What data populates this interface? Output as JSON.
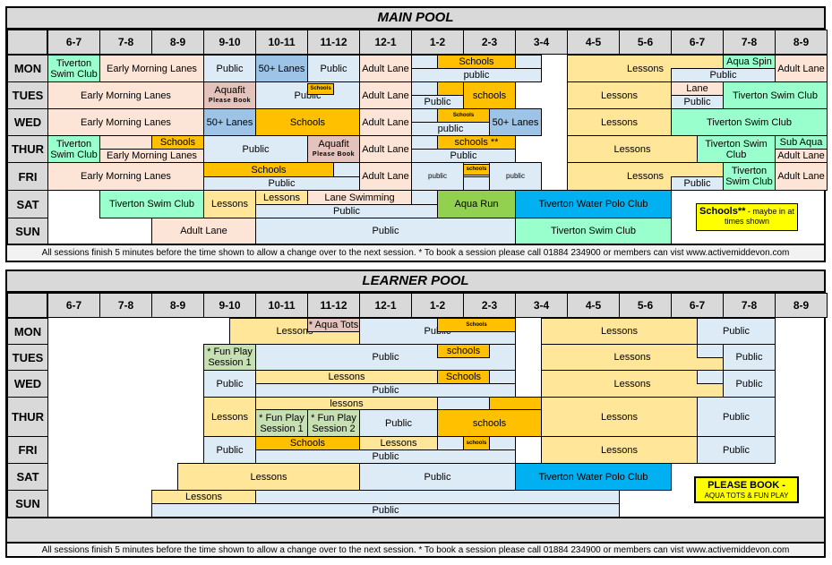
{
  "colors": {
    "header_gray": "#d9d9d9",
    "early_lanes": "#fce4d6",
    "public": "#ddebf7",
    "lanes_50": "#9dc3e6",
    "swim_club": "#99ffcc",
    "schools": "#ffc000",
    "lessons": "#ffe699",
    "aquafit": "#e3c3bb",
    "aqua_run": "#92d050",
    "water_polo": "#00b0f0",
    "fun_play": "#c6e0b4",
    "legend": "#ffff00"
  },
  "time_slots": [
    "6-7",
    "7-8",
    "8-9",
    "9-10",
    "10-11",
    "11-12",
    "12-1",
    "1-2",
    "2-3",
    "3-4",
    "4-5",
    "5-6",
    "6-7",
    "7-8",
    "8-9"
  ],
  "days": [
    "MON",
    "TUES",
    "WED",
    "THUR",
    "FRI",
    "SAT",
    "SUN"
  ],
  "footer": "All sessions finish 5 minutes before the time shown to allow a change over to the next session. * To book a session please call 01884 234900 or members can vist www.activemiddevon.com",
  "main_pool": {
    "title": "MAIN POOL",
    "legend": {
      "bold": "Schools**",
      "text": " - maybe in at times shown"
    },
    "sessions": [
      {
        "day": "MON",
        "start": 6,
        "end": 7,
        "label": "Tiverton\nSwim Club",
        "color": "swim_club"
      },
      {
        "day": "MON",
        "start": 7,
        "end": 9,
        "label": "Early Morning Lanes",
        "color": "early_lanes"
      },
      {
        "day": "MON",
        "start": 9,
        "end": 10,
        "label": "Public",
        "color": "public"
      },
      {
        "day": "MON",
        "start": 10,
        "end": 11,
        "label": "50+ Lanes",
        "color": "lanes_50"
      },
      {
        "day": "MON",
        "start": 11,
        "end": 12,
        "label": "Public",
        "color": "public"
      },
      {
        "day": "MON",
        "start": 12,
        "end": 13,
        "label": "Adult Lane",
        "color": "early_lanes"
      },
      {
        "day": "MON",
        "start": 13,
        "end": 15.5,
        "part": "bottom",
        "label": "public",
        "color": "public"
      },
      {
        "day": "MON",
        "start": 13,
        "end": 13.5,
        "part": "top",
        "label": "",
        "color": "public"
      },
      {
        "day": "MON",
        "start": 15,
        "end": 15.5,
        "part": "top",
        "label": "",
        "color": "public"
      },
      {
        "day": "MON",
        "start": 13.5,
        "end": 15,
        "part": "top",
        "label": "Schools",
        "color": "schools"
      },
      {
        "day": "MON",
        "start": 16,
        "end": 19,
        "label": "Lessons",
        "color": "lessons"
      },
      {
        "day": "MON",
        "start": 18,
        "end": 20,
        "part": "bottom",
        "label": "Public",
        "color": "public"
      },
      {
        "day": "MON",
        "start": 19,
        "end": 20,
        "part": "top",
        "label": "Aqua Spin",
        "color": "swim_club"
      },
      {
        "day": "MON",
        "start": 20,
        "end": 21,
        "label": "Adult Lane",
        "color": "early_lanes"
      },
      {
        "day": "TUES",
        "start": 6,
        "end": 9,
        "label": "Early Morning Lanes",
        "color": "early_lanes"
      },
      {
        "day": "TUES",
        "start": 9,
        "end": 10,
        "label": "Aquafit",
        "sub": "Please Book",
        "color": "aquafit"
      },
      {
        "day": "TUES",
        "start": 10,
        "end": 12,
        "label": "Public",
        "color": "public"
      },
      {
        "day": "TUES",
        "start": 11,
        "end": 11.5,
        "part": "tiny",
        "label": "Schools",
        "color": "schools"
      },
      {
        "day": "TUES",
        "start": 12,
        "end": 13,
        "label": "Adult Lane",
        "color": "early_lanes"
      },
      {
        "day": "TUES",
        "start": 13,
        "end": 14,
        "part": "bottom",
        "label": "Public",
        "color": "public"
      },
      {
        "day": "TUES",
        "start": 13,
        "end": 13.5,
        "part": "top",
        "label": "",
        "color": "public"
      },
      {
        "day": "TUES",
        "start": 13.5,
        "end": 15,
        "part": "top",
        "label": "",
        "color": "schools"
      },
      {
        "day": "TUES",
        "start": 14,
        "end": 15,
        "label": "schools",
        "color": "schools"
      },
      {
        "day": "TUES",
        "start": 16,
        "end": 18,
        "label": "Lessons",
        "color": "lessons"
      },
      {
        "day": "TUES",
        "start": 18,
        "end": 19,
        "part": "top",
        "label": "Lane",
        "color": "early_lanes"
      },
      {
        "day": "TUES",
        "start": 18,
        "end": 19,
        "part": "bottom",
        "label": "Public",
        "color": "public"
      },
      {
        "day": "TUES",
        "start": 19,
        "end": 21,
        "label": "Tiverton Swim Club",
        "color": "swim_club"
      },
      {
        "day": "WED",
        "start": 6,
        "end": 9,
        "label": "Early Morning Lanes",
        "color": "early_lanes"
      },
      {
        "day": "WED",
        "start": 9,
        "end": 10,
        "label": "50+ Lanes",
        "color": "lanes_50"
      },
      {
        "day": "WED",
        "start": 10,
        "end": 12,
        "label": "Schools",
        "color": "schools"
      },
      {
        "day": "WED",
        "start": 12,
        "end": 13,
        "label": "Adult Lane",
        "color": "early_lanes"
      },
      {
        "day": "WED",
        "start": 13,
        "end": 14.5,
        "part": "bottom",
        "label": "public",
        "color": "public"
      },
      {
        "day": "WED",
        "start": 13,
        "end": 13.5,
        "part": "top",
        "label": "",
        "color": "public"
      },
      {
        "day": "WED",
        "start": 13.5,
        "end": 14.5,
        "part": "top",
        "label": "Schools",
        "small": true,
        "color": "schools"
      },
      {
        "day": "WED",
        "start": 14.5,
        "end": 15.5,
        "label": "50+  Lanes",
        "color": "lanes_50"
      },
      {
        "day": "WED",
        "start": 16,
        "end": 18,
        "label": "Lessons",
        "color": "lessons"
      },
      {
        "day": "WED",
        "start": 18,
        "end": 21,
        "label": "Tiverton Swim Club",
        "color": "swim_club"
      },
      {
        "day": "THUR",
        "start": 6,
        "end": 7,
        "label": "Tiverton\nSwim Club",
        "color": "swim_club"
      },
      {
        "day": "THUR",
        "start": 7,
        "end": 9,
        "part": "bottom",
        "label": "Early Morning Lanes",
        "color": "early_lanes"
      },
      {
        "day": "THUR",
        "start": 7,
        "end": 8,
        "part": "top",
        "label": "",
        "color": "early_lanes"
      },
      {
        "day": "THUR",
        "start": 8,
        "end": 9,
        "part": "top",
        "label": "Schools",
        "color": "schools"
      },
      {
        "day": "THUR",
        "start": 9,
        "end": 11,
        "label": "Public",
        "color": "public"
      },
      {
        "day": "THUR",
        "start": 11,
        "end": 12,
        "label": "Aquafit",
        "sub": "Please Book",
        "color": "aquafit"
      },
      {
        "day": "THUR",
        "start": 12,
        "end": 13,
        "label": "Adult Lane",
        "color": "early_lanes"
      },
      {
        "day": "THUR",
        "start": 13,
        "end": 15,
        "part": "bottom",
        "label": "Public",
        "color": "public"
      },
      {
        "day": "THUR",
        "start": 13,
        "end": 13.5,
        "part": "top",
        "label": "",
        "color": "public"
      },
      {
        "day": "THUR",
        "start": 13.5,
        "end": 15,
        "part": "top",
        "label": "schools **",
        "color": "schools"
      },
      {
        "day": "THUR",
        "start": 16,
        "end": 18.5,
        "label": "Lessons",
        "color": "lessons"
      },
      {
        "day": "THUR",
        "start": 18.5,
        "end": 20,
        "label": "Tiverton Swim\nClub",
        "color": "swim_club"
      },
      {
        "day": "THUR",
        "start": 20,
        "end": 21,
        "part": "top",
        "label": "Sub Aqua",
        "color": "swim_club"
      },
      {
        "day": "THUR",
        "start": 20,
        "end": 21,
        "part": "bottom",
        "label": "Adult Lane",
        "color": "early_lanes"
      },
      {
        "day": "FRI",
        "start": 6,
        "end": 9,
        "label": "Early Morning Lanes",
        "color": "early_lanes"
      },
      {
        "day": "FRI",
        "start": 9,
        "end": 12,
        "part": "bottom",
        "label": "Public",
        "color": "public"
      },
      {
        "day": "FRI",
        "start": 11.5,
        "end": 12,
        "part": "top",
        "label": "",
        "color": "public"
      },
      {
        "day": "FRI",
        "start": 9,
        "end": 11.5,
        "part": "top",
        "label": "Schools",
        "color": "schools"
      },
      {
        "day": "FRI",
        "start": 12,
        "end": 13,
        "label": "Adult Lane",
        "color": "early_lanes"
      },
      {
        "day": "FRI",
        "start": 13,
        "end": 14,
        "label": "public",
        "small2": true,
        "color": "public"
      },
      {
        "day": "FRI",
        "start": 14,
        "end": 14.5,
        "part": "bottom",
        "label": "",
        "color": "public"
      },
      {
        "day": "FRI",
        "start": 14,
        "end": 14.5,
        "part": "tiny",
        "label": "schools",
        "color": "schools"
      },
      {
        "day": "FRI",
        "start": 14.5,
        "end": 15.5,
        "label": "public",
        "small2": true,
        "color": "public"
      },
      {
        "day": "FRI",
        "start": 16,
        "end": 19,
        "label": "Lessons",
        "color": "lessons"
      },
      {
        "day": "FRI",
        "start": 18,
        "end": 19,
        "part": "bottom",
        "label": "Public",
        "color": "public"
      },
      {
        "day": "FRI",
        "start": 19,
        "end": 20,
        "label": "Tiverton\nSwim Club",
        "color": "swim_club"
      },
      {
        "day": "FRI",
        "start": 20,
        "end": 21,
        "label": "Adult Lane",
        "color": "early_lanes"
      },
      {
        "day": "SAT",
        "start": 7,
        "end": 9,
        "label": "Tiverton Swim Club",
        "color": "swim_club"
      },
      {
        "day": "SAT",
        "start": 9,
        "end": 10,
        "label": "Lessons",
        "color": "lessons"
      },
      {
        "day": "SAT",
        "start": 10,
        "end": 13.5,
        "part": "bottom",
        "label": "Public",
        "color": "public"
      },
      {
        "day": "SAT",
        "start": 13,
        "end": 13.5,
        "part": "top",
        "label": "",
        "color": "public"
      },
      {
        "day": "SAT",
        "start": 10,
        "end": 11,
        "part": "top",
        "label": "Lessons",
        "color": "lessons"
      },
      {
        "day": "SAT",
        "start": 11,
        "end": 13,
        "part": "top",
        "label": "Lane Swimming",
        "color": "early_lanes"
      },
      {
        "day": "SAT",
        "start": 13.5,
        "end": 15,
        "label": "Aqua Run",
        "color": "aqua_run"
      },
      {
        "day": "SAT",
        "start": 15,
        "end": 18,
        "label": "Tiverton Water Polo Club",
        "color": "water_polo"
      },
      {
        "day": "SUN",
        "start": 8,
        "end": 10,
        "label": "Adult Lane",
        "color": "early_lanes"
      },
      {
        "day": "SUN",
        "start": 10,
        "end": 15,
        "label": "Public",
        "color": "public"
      },
      {
        "day": "SUN",
        "start": 15,
        "end": 18,
        "label": "Tiverton Swim Club",
        "color": "swim_club"
      }
    ]
  },
  "learner_pool": {
    "title": "LEARNER POOL",
    "legend": {
      "bold": "PLEASE BOOK -",
      "text": "AQUA TOTS & FUN PLAY"
    },
    "sessions": [
      {
        "day": "MON",
        "start": 9.5,
        "end": 12,
        "label": "Lessons",
        "color": "lessons"
      },
      {
        "day": "MON",
        "start": 11,
        "end": 12,
        "part": "top",
        "label": "* Aqua Tots",
        "color": "aquafit"
      },
      {
        "day": "MON",
        "start": 12,
        "end": 15,
        "label": "Public",
        "color": "public"
      },
      {
        "day": "MON",
        "start": 13.5,
        "end": 15,
        "part": "top",
        "label": "Schools",
        "small": true,
        "color": "schools"
      },
      {
        "day": "MON",
        "start": 15.5,
        "end": 18.5,
        "label": "Lessons",
        "color": "lessons"
      },
      {
        "day": "MON",
        "start": 18.5,
        "end": 20,
        "label": "Public",
        "color": "public"
      },
      {
        "day": "TUES",
        "start": 9,
        "end": 10,
        "label": "* Fun Play\nSession 1",
        "color": "fun_play"
      },
      {
        "day": "TUES",
        "start": 10,
        "end": 15,
        "label": "Public",
        "color": "public"
      },
      {
        "day": "TUES",
        "start": 13.5,
        "end": 14.5,
        "part": "top",
        "label": "schools",
        "color": "schools"
      },
      {
        "day": "TUES",
        "start": 15.5,
        "end": 19,
        "label": "Lessons",
        "color": "lessons"
      },
      {
        "day": "TUES",
        "start": 18.5,
        "end": 19,
        "part": "top",
        "label": "",
        "color": "public"
      },
      {
        "day": "TUES",
        "start": 19,
        "end": 20,
        "label": "Public",
        "color": "public"
      },
      {
        "day": "WED",
        "start": 9,
        "end": 10,
        "label": "Public",
        "color": "public"
      },
      {
        "day": "WED",
        "start": 10,
        "end": 15,
        "part": "bottom",
        "label": "Public",
        "color": "public"
      },
      {
        "day": "WED",
        "start": 10,
        "end": 13.5,
        "part": "top",
        "label": "Lessons",
        "color": "lessons"
      },
      {
        "day": "WED",
        "start": 13.5,
        "end": 14.5,
        "part": "top",
        "label": "Schools",
        "color": "schools"
      },
      {
        "day": "WED",
        "start": 14.5,
        "end": 15,
        "part": "top",
        "label": "",
        "color": "public"
      },
      {
        "day": "WED",
        "start": 15.5,
        "end": 19,
        "label": "Lessons",
        "color": "lessons"
      },
      {
        "day": "WED",
        "start": 18.5,
        "end": 19,
        "part": "top",
        "label": "",
        "color": "public"
      },
      {
        "day": "WED",
        "start": 19,
        "end": 20,
        "label": "Public",
        "color": "public"
      },
      {
        "day": "THUR",
        "start": 9,
        "end": 10,
        "label": "Lessons",
        "color": "lessons"
      },
      {
        "day": "THUR",
        "start": 10,
        "end": 13.5,
        "part": "top",
        "label": "lessons",
        "color": "lessons"
      },
      {
        "day": "THUR",
        "start": 10,
        "end": 11,
        "part": "bottom",
        "label": "* Fun Play\nSession 1",
        "color": "fun_play"
      },
      {
        "day": "THUR",
        "start": 11,
        "end": 12,
        "part": "bottom",
        "label": "* Fun Play\nSession 2",
        "color": "fun_play"
      },
      {
        "day": "THUR",
        "start": 12,
        "end": 13.5,
        "part": "bottom",
        "label": "Public",
        "color": "public"
      },
      {
        "day": "THUR",
        "start": 13.5,
        "end": 14.5,
        "part": "top",
        "label": "",
        "color": "public"
      },
      {
        "day": "THUR",
        "start": 14.5,
        "end": 15.5,
        "part": "top",
        "label": "",
        "color": "schools"
      },
      {
        "day": "THUR",
        "start": 13.5,
        "end": 15.5,
        "part": "bottom",
        "label": "schools",
        "color": "schools"
      },
      {
        "day": "THUR",
        "start": 15.5,
        "end": 18.5,
        "label": "Lessons",
        "color": "lessons"
      },
      {
        "day": "THUR",
        "start": 18.5,
        "end": 20,
        "label": "Public",
        "color": "public"
      },
      {
        "day": "FRI",
        "start": 9,
        "end": 10,
        "label": "Public",
        "color": "public"
      },
      {
        "day": "FRI",
        "start": 10,
        "end": 15,
        "part": "bottom",
        "label": "Public",
        "color": "public"
      },
      {
        "day": "FRI",
        "start": 10,
        "end": 12,
        "part": "top",
        "label": "Schools",
        "color": "schools"
      },
      {
        "day": "FRI",
        "start": 12,
        "end": 13.5,
        "part": "top",
        "label": "Lessons",
        "color": "lessons"
      },
      {
        "day": "FRI",
        "start": 13.5,
        "end": 15,
        "part": "top",
        "label": "",
        "color": "public"
      },
      {
        "day": "FRI",
        "start": 14,
        "end": 14.5,
        "part": "top",
        "label": "schools",
        "small": true,
        "color": "schools"
      },
      {
        "day": "FRI",
        "start": 15.5,
        "end": 18.5,
        "label": "Lessons",
        "color": "lessons"
      },
      {
        "day": "FRI",
        "start": 18.5,
        "end": 20,
        "label": "Public",
        "color": "public"
      },
      {
        "day": "SAT",
        "start": 8.5,
        "end": 12,
        "label": "Lessons",
        "color": "lessons"
      },
      {
        "day": "SAT",
        "start": 12,
        "end": 15,
        "label": "Public",
        "color": "public"
      },
      {
        "day": "SAT",
        "start": 15,
        "end": 18,
        "label": "Tiverton Water Polo Club",
        "color": "water_polo"
      },
      {
        "day": "SUN",
        "start": 8,
        "end": 17,
        "part": "bottom",
        "label": "Public",
        "color": "public"
      },
      {
        "day": "SUN",
        "start": 10,
        "end": 17,
        "part": "top",
        "label": "",
        "color": "public"
      },
      {
        "day": "SUN",
        "start": 8,
        "end": 10,
        "part": "top",
        "label": "Lessons",
        "color": "lessons"
      }
    ]
  }
}
